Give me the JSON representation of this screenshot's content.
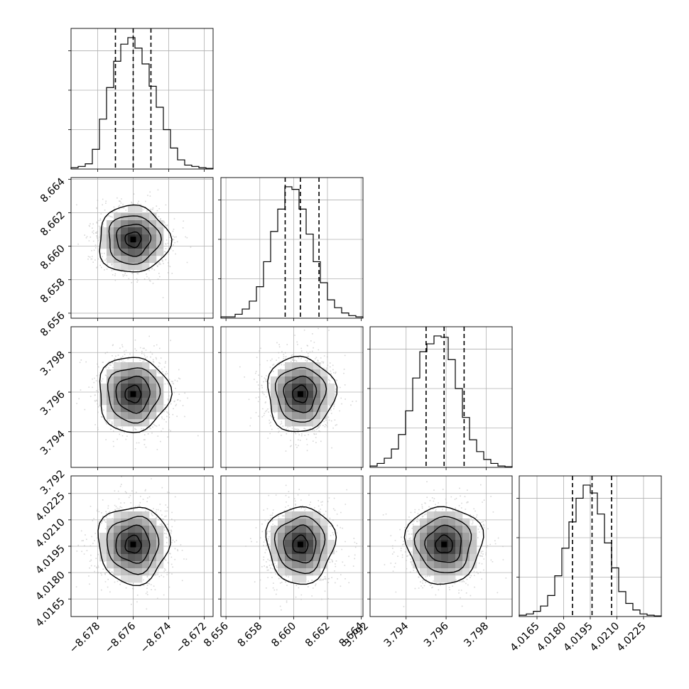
{
  "chart_data": {
    "type": "corner",
    "params": [
      {
        "ticks": [
          -8.678,
          -8.676,
          -8.674,
          -8.672
        ],
        "tick_labels": [
          "−8.678",
          "−8.676",
          "−8.674",
          "−8.672"
        ],
        "range": [
          -8.6795,
          -8.6715
        ],
        "median": -8.676,
        "lo": -8.677,
        "hi": -8.675
      },
      {
        "ticks": [
          8.656,
          8.658,
          8.66,
          8.662,
          8.664
        ],
        "tick_labels": [
          "8.656",
          "8.658",
          "8.660",
          "8.662",
          "8.664"
        ],
        "range": [
          8.6557,
          8.6641
        ],
        "median": 8.6604,
        "lo": 8.6595,
        "hi": 8.6615
      },
      {
        "ticks": [
          3.792,
          3.794,
          3.796,
          3.798
        ],
        "tick_labels": [
          "3.792",
          "3.794",
          "3.796",
          "3.798"
        ],
        "range": [
          3.7922,
          3.7993
        ],
        "median": 3.7959,
        "lo": 3.795,
        "hi": 3.7969
      },
      {
        "ticks": [
          4.0165,
          4.018,
          4.0195,
          4.021,
          4.0225
        ],
        "tick_labels": [
          "4.0165",
          "4.0180",
          "4.0195",
          "4.0210",
          "4.0225"
        ],
        "range": [
          4.0155,
          4.0235
        ],
        "median": 4.0196,
        "lo": 4.0185,
        "hi": 4.0207
      }
    ],
    "histograms": [
      [
        0.01,
        0.02,
        0.04,
        0.15,
        0.38,
        0.62,
        0.82,
        0.95,
        1.0,
        0.92,
        0.8,
        0.63,
        0.47,
        0.3,
        0.16,
        0.07,
        0.03,
        0.02,
        0.01,
        0.005
      ],
      [
        0.01,
        0.01,
        0.03,
        0.07,
        0.13,
        0.24,
        0.43,
        0.66,
        0.83,
        1.0,
        0.98,
        0.83,
        0.64,
        0.43,
        0.27,
        0.14,
        0.08,
        0.04,
        0.02,
        0.01
      ],
      [
        0.01,
        0.03,
        0.07,
        0.14,
        0.25,
        0.43,
        0.68,
        0.88,
        0.94,
        1.0,
        0.99,
        0.82,
        0.6,
        0.38,
        0.21,
        0.12,
        0.06,
        0.03,
        0.01,
        0.005
      ],
      [
        0.01,
        0.02,
        0.04,
        0.08,
        0.16,
        0.31,
        0.52,
        0.72,
        0.9,
        1.0,
        0.94,
        0.78,
        0.56,
        0.37,
        0.19,
        0.1,
        0.05,
        0.02,
        0.01,
        0.005
      ]
    ],
    "histogram_gridlines": [
      0.3,
      0.6,
      0.9
    ],
    "show_grid": true
  }
}
